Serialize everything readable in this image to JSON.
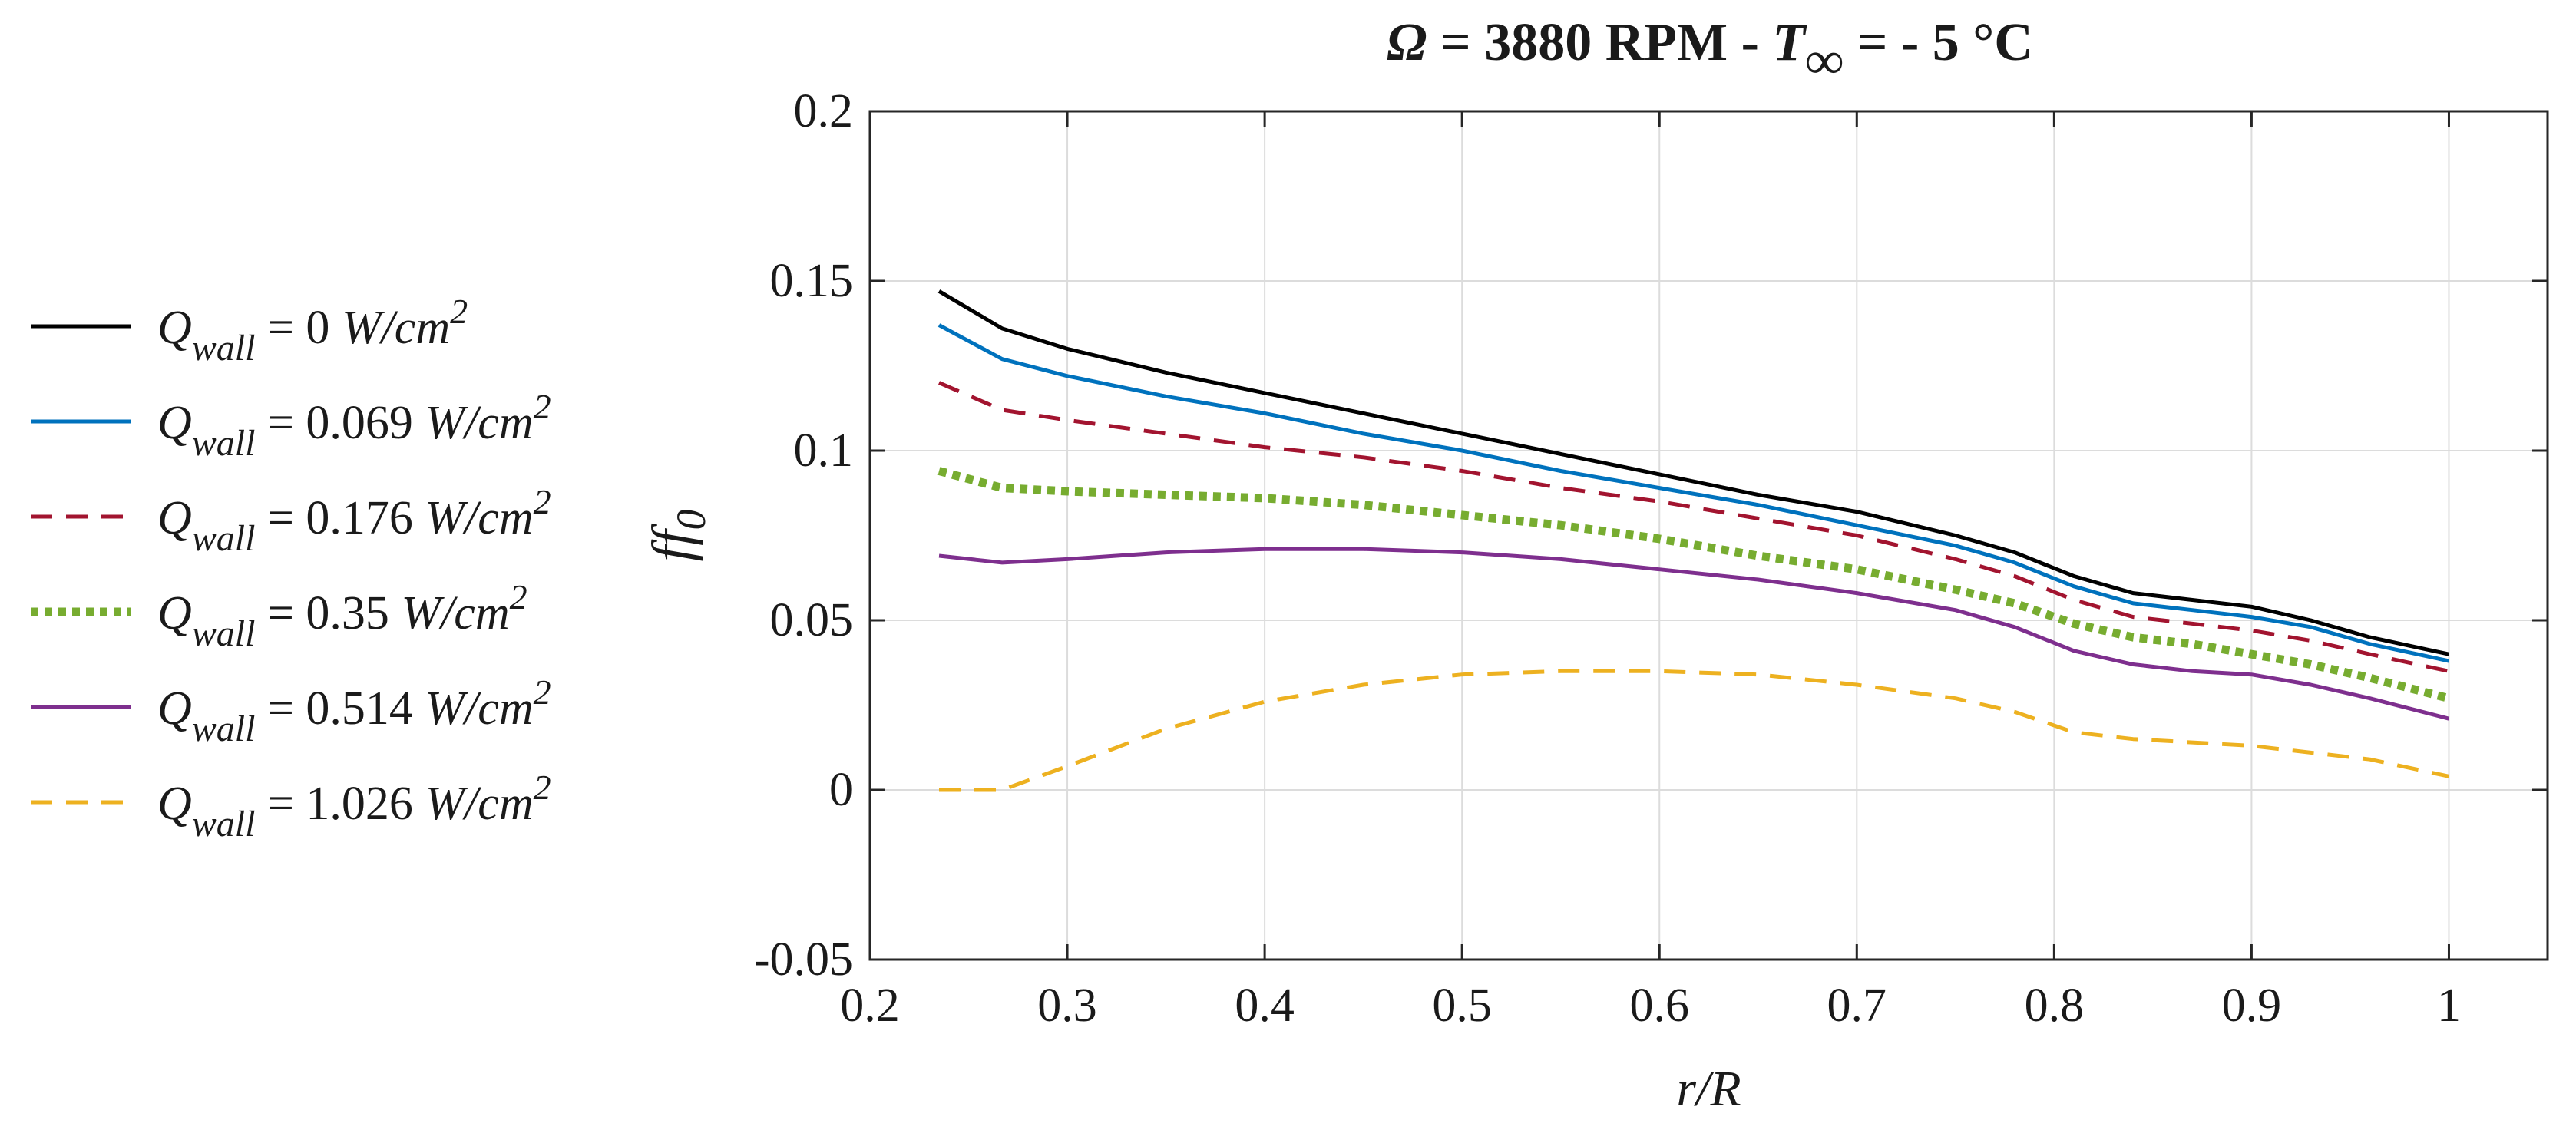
{
  "chart_data": {
    "type": "line",
    "title": {
      "prefix": "Ω",
      "main": " = 3880 RPM - ",
      "var": "T",
      "sub": "∞",
      "suffix": " = - 5 °C"
    },
    "xlabel": "r/R",
    "ylabel": {
      "main": "ff",
      "sub": "0"
    },
    "xlim": [
      0.2,
      1.05
    ],
    "ylim": [
      -0.05,
      0.2
    ],
    "xticks": [
      0.2,
      0.3,
      0.4,
      0.5,
      0.6,
      0.7,
      0.8,
      0.9,
      1
    ],
    "xtick_labels": [
      "0.2",
      "0.3",
      "0.4",
      "0.5",
      "0.6",
      "0.7",
      "0.8",
      "0.9",
      "1"
    ],
    "yticks": [
      -0.05,
      0,
      0.05,
      0.1,
      0.15,
      0.2
    ],
    "ytick_labels": [
      "-0.05",
      "0",
      "0.05",
      "0.1",
      "0.15",
      "0.2"
    ],
    "grid": true,
    "legend_position": "outside-left",
    "x": [
      0.235,
      0.267,
      0.3,
      0.35,
      0.4,
      0.45,
      0.5,
      0.55,
      0.6,
      0.65,
      0.7,
      0.75,
      0.78,
      0.81,
      0.84,
      0.87,
      0.9,
      0.93,
      0.96,
      1.0
    ],
    "series": [
      {
        "name": "0",
        "legend": {
          "var": "Q",
          "sub": "wall",
          "eq": " = ",
          "value": "0",
          "unit": "W/cm",
          "exp": "2"
        },
        "color": "#000000",
        "style": "solid",
        "values": [
          0.147,
          0.136,
          0.13,
          0.123,
          0.117,
          0.111,
          0.105,
          0.099,
          0.093,
          0.087,
          0.082,
          0.075,
          0.07,
          0.063,
          0.058,
          0.056,
          0.054,
          0.05,
          0.045,
          0.04
        ]
      },
      {
        "name": "0.069",
        "legend": {
          "var": "Q",
          "sub": "wall",
          "eq": " = ",
          "value": "0.069",
          "unit": "W/cm",
          "exp": "2"
        },
        "color": "#0072BD",
        "style": "solid",
        "values": [
          0.137,
          0.127,
          0.122,
          0.116,
          0.111,
          0.105,
          0.1,
          0.094,
          0.089,
          0.084,
          0.078,
          0.072,
          0.067,
          0.06,
          0.055,
          0.053,
          0.051,
          0.048,
          0.043,
          0.038
        ]
      },
      {
        "name": "0.176",
        "legend": {
          "var": "Q",
          "sub": "wall",
          "eq": " = ",
          "value": "0.176",
          "unit": "W/cm",
          "exp": "2"
        },
        "color": "#A2142F",
        "style": "dashed",
        "values": [
          0.12,
          0.112,
          0.109,
          0.105,
          0.101,
          0.098,
          0.094,
          0.089,
          0.085,
          0.08,
          0.075,
          0.068,
          0.063,
          0.056,
          0.051,
          0.049,
          0.047,
          0.044,
          0.04,
          0.035
        ]
      },
      {
        "name": "0.35",
        "legend": {
          "var": "Q",
          "sub": "wall",
          "eq": " = ",
          "value": "0.35",
          "unit": "W/cm",
          "exp": "2"
        },
        "color": "#77AC30",
        "style": "dotted",
        "values": [
          0.094,
          0.089,
          0.088,
          0.087,
          0.086,
          0.084,
          0.081,
          0.078,
          0.074,
          0.069,
          0.065,
          0.059,
          0.055,
          0.049,
          0.045,
          0.043,
          0.04,
          0.037,
          0.033,
          0.027
        ]
      },
      {
        "name": "0.514",
        "legend": {
          "var": "Q",
          "sub": "wall",
          "eq": " = ",
          "value": "0.514",
          "unit": "W/cm",
          "exp": "2"
        },
        "color": "#7E2F8E",
        "style": "solid",
        "values": [
          0.069,
          0.067,
          0.068,
          0.07,
          0.071,
          0.071,
          0.07,
          0.068,
          0.065,
          0.062,
          0.058,
          0.053,
          0.048,
          0.041,
          0.037,
          0.035,
          0.034,
          0.031,
          0.027,
          0.021
        ]
      },
      {
        "name": "1.026",
        "legend": {
          "var": "Q",
          "sub": "wall",
          "eq": " = ",
          "value": "1.026",
          "unit": "W/cm",
          "exp": "2"
        },
        "color": "#EDB120",
        "style": "dashed",
        "values": [
          0.0,
          0.0,
          0.007,
          0.018,
          0.026,
          0.031,
          0.034,
          0.035,
          0.035,
          0.034,
          0.031,
          0.027,
          0.023,
          0.017,
          0.015,
          0.014,
          0.013,
          0.011,
          0.009,
          0.004
        ]
      }
    ]
  }
}
